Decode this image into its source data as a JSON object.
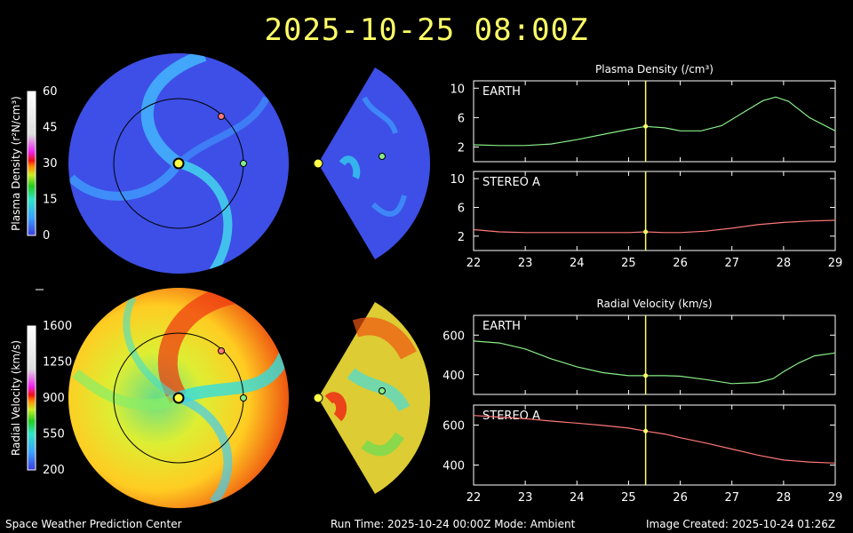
{
  "header": {
    "timestamp": "2025-10-25 08:00Z"
  },
  "footer": {
    "center": "Space Weather Prediction Center",
    "run": "Run Time: 2025-10-24 00:00Z  Mode: Ambient",
    "created": "Image Created: 2025-10-24 01:26Z"
  },
  "colorbars": {
    "density": {
      "label": "Plasma Density (r²N/cm³)",
      "ticks": [
        "60",
        "45",
        "30",
        "15",
        "0"
      ]
    },
    "velocity": {
      "label": "Radial Velocity (km/s)",
      "ticks": [
        "1600",
        "1250",
        "900",
        "550",
        "200"
      ]
    }
  },
  "colors": {
    "earth_line": "#88ee88",
    "stereo_line": "#ff7777",
    "marker": "#ffff66",
    "title": "#ffff66"
  },
  "chart_data": [
    {
      "type": "line",
      "title": "Plasma Density (/cm³)",
      "panel": "EARTH",
      "xlim": [
        22,
        29
      ],
      "ylim": [
        0,
        11
      ],
      "yticks": [
        2,
        6,
        10
      ],
      "marker_x": 25.33,
      "x": [
        22,
        22.5,
        23,
        23.5,
        24,
        24.5,
        25,
        25.33,
        25.7,
        26,
        26.4,
        26.8,
        27.2,
        27.6,
        27.85,
        28.1,
        28.5,
        29
      ],
      "values": [
        2.3,
        2.2,
        2.2,
        2.4,
        3.0,
        3.7,
        4.4,
        4.8,
        4.6,
        4.2,
        4.2,
        4.9,
        6.6,
        8.3,
        8.8,
        8.2,
        6.0,
        4.2
      ]
    },
    {
      "type": "line",
      "panel": "STEREO A",
      "xlim": [
        22,
        29
      ],
      "xticks": [
        22,
        23,
        24,
        25,
        26,
        27,
        28,
        29
      ],
      "ylim": [
        0,
        11
      ],
      "yticks": [
        2,
        6,
        10
      ],
      "marker_x": 25.33,
      "x": [
        22,
        22.5,
        23,
        23.5,
        24,
        24.5,
        25,
        25.33,
        25.7,
        26,
        26.5,
        27,
        27.5,
        28,
        28.5,
        29
      ],
      "values": [
        2.9,
        2.6,
        2.5,
        2.5,
        2.5,
        2.5,
        2.5,
        2.6,
        2.5,
        2.5,
        2.7,
        3.1,
        3.6,
        3.9,
        4.1,
        4.2
      ]
    },
    {
      "type": "line",
      "title": "Radial Velocity (km/s)",
      "panel": "EARTH",
      "xlim": [
        22,
        29
      ],
      "ylim": [
        300,
        700
      ],
      "yticks": [
        400,
        600
      ],
      "marker_x": 25.33,
      "x": [
        22,
        22.5,
        23,
        23.5,
        24,
        24.5,
        25,
        25.33,
        25.7,
        26,
        26.5,
        27,
        27.5,
        27.8,
        28,
        28.3,
        28.6,
        29
      ],
      "values": [
        570,
        560,
        530,
        480,
        440,
        410,
        395,
        395,
        395,
        392,
        375,
        355,
        360,
        380,
        415,
        460,
        495,
        510
      ]
    },
    {
      "type": "line",
      "panel": "STEREO A",
      "xlim": [
        22,
        29
      ],
      "xticks": [
        22,
        23,
        24,
        25,
        26,
        27,
        28,
        29
      ],
      "ylim": [
        300,
        700
      ],
      "yticks": [
        400,
        600
      ],
      "marker_x": 25.33,
      "x": [
        22,
        22.5,
        23,
        23.5,
        24,
        24.5,
        25,
        25.33,
        25.7,
        26,
        26.5,
        27,
        27.5,
        28,
        28.5,
        29
      ],
      "values": [
        648,
        640,
        632,
        620,
        610,
        598,
        585,
        570,
        555,
        537,
        510,
        480,
        450,
        425,
        415,
        410
      ]
    }
  ]
}
